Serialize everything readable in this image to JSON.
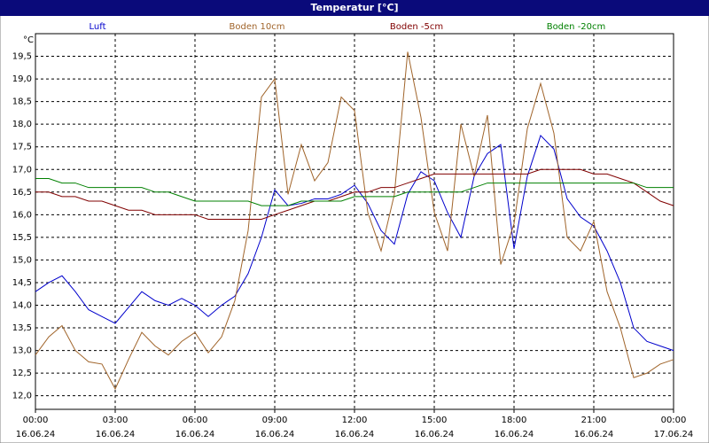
{
  "chart_data": {
    "type": "line",
    "title": "Temperatur [°C]",
    "y_unit": "°C",
    "x": [
      0,
      0.5,
      1,
      1.5,
      2,
      2.5,
      3,
      3.5,
      4,
      4.5,
      5,
      5.5,
      6,
      6.5,
      7,
      7.5,
      8,
      8.5,
      9,
      9.5,
      10,
      10.5,
      11,
      11.5,
      12,
      12.5,
      13,
      13.5,
      14,
      14.5,
      15,
      15.5,
      16,
      16.5,
      17,
      17.5,
      18,
      18.5,
      19,
      19.5,
      20,
      20.5,
      21,
      21.5,
      22,
      22.5,
      23,
      23.5,
      24
    ],
    "series": [
      {
        "name": "Luft",
        "color": "#0000cc",
        "values": [
          14.3,
          14.5,
          14.65,
          14.3,
          13.9,
          13.75,
          13.6,
          13.95,
          14.3,
          14.1,
          14.0,
          14.15,
          14.0,
          13.75,
          14.0,
          14.2,
          14.7,
          15.5,
          16.55,
          16.2,
          16.25,
          16.35,
          16.35,
          16.45,
          16.65,
          16.25,
          15.65,
          15.35,
          16.45,
          16.95,
          16.75,
          16.05,
          15.5,
          16.85,
          17.35,
          17.55,
          15.25,
          16.85,
          17.75,
          17.45,
          16.35,
          15.95,
          15.75,
          15.2,
          14.5,
          13.5,
          13.2,
          13.1,
          13.0
        ]
      },
      {
        "name": "Boden 10cm",
        "color": "#a0642a",
        "values": [
          12.9,
          13.3,
          13.55,
          13.0,
          12.75,
          12.7,
          12.15,
          12.8,
          13.4,
          13.1,
          12.9,
          13.2,
          13.4,
          12.95,
          13.3,
          14.1,
          15.65,
          18.6,
          19.0,
          16.45,
          17.55,
          16.75,
          17.15,
          18.6,
          18.3,
          16.05,
          15.2,
          16.45,
          19.6,
          18.15,
          16.05,
          15.2,
          18.0,
          16.85,
          18.2,
          14.9,
          15.8,
          17.9,
          18.9,
          17.8,
          15.5,
          15.2,
          15.85,
          14.3,
          13.5,
          12.4,
          12.5,
          12.7,
          12.8
        ]
      },
      {
        "name": "Boden -5cm",
        "color": "#800000",
        "values": [
          16.5,
          16.5,
          16.4,
          16.4,
          16.3,
          16.3,
          16.2,
          16.1,
          16.1,
          16.0,
          16.0,
          16.0,
          16.0,
          15.9,
          15.9,
          15.9,
          15.9,
          15.9,
          16.0,
          16.1,
          16.2,
          16.3,
          16.3,
          16.4,
          16.5,
          16.5,
          16.6,
          16.6,
          16.7,
          16.8,
          16.9,
          16.9,
          16.9,
          16.9,
          16.9,
          16.9,
          16.9,
          16.9,
          17.0,
          17.0,
          17.0,
          17.0,
          16.9,
          16.9,
          16.8,
          16.7,
          16.5,
          16.3,
          16.2
        ]
      },
      {
        "name": "Boden -20cm",
        "color": "#008000",
        "values": [
          16.8,
          16.8,
          16.7,
          16.7,
          16.6,
          16.6,
          16.6,
          16.6,
          16.6,
          16.5,
          16.5,
          16.4,
          16.3,
          16.3,
          16.3,
          16.3,
          16.3,
          16.2,
          16.2,
          16.2,
          16.3,
          16.3,
          16.3,
          16.3,
          16.4,
          16.4,
          16.4,
          16.4,
          16.5,
          16.5,
          16.5,
          16.5,
          16.5,
          16.6,
          16.7,
          16.7,
          16.7,
          16.7,
          16.7,
          16.7,
          16.7,
          16.7,
          16.7,
          16.7,
          16.7,
          16.7,
          16.6,
          16.6,
          16.6
        ]
      }
    ],
    "xlim": [
      0,
      24
    ],
    "xticks": [
      {
        "value": 0,
        "label": "00:00",
        "date": "16.06.24"
      },
      {
        "value": 3,
        "label": "03:00",
        "date": "16.06.24"
      },
      {
        "value": 6,
        "label": "06:00",
        "date": "16.06.24"
      },
      {
        "value": 9,
        "label": "09:00",
        "date": "16.06.24"
      },
      {
        "value": 12,
        "label": "12:00",
        "date": "16.06.24"
      },
      {
        "value": 15,
        "label": "15:00",
        "date": "16.06.24"
      },
      {
        "value": 18,
        "label": "18:00",
        "date": "16.06.24"
      },
      {
        "value": 21,
        "label": "21:00",
        "date": "16.06.24"
      },
      {
        "value": 24,
        "label": "00:00",
        "date": "17.06.24"
      }
    ],
    "ylim": [
      11.7,
      20.0
    ],
    "yticks": [
      {
        "value": 12.0,
        "label": "12,0"
      },
      {
        "value": 12.5,
        "label": "12,5"
      },
      {
        "value": 13.0,
        "label": "13,0"
      },
      {
        "value": 13.5,
        "label": "13,5"
      },
      {
        "value": 14.0,
        "label": "14,0"
      },
      {
        "value": 14.5,
        "label": "14,5"
      },
      {
        "value": 15.0,
        "label": "15,0"
      },
      {
        "value": 15.5,
        "label": "15,5"
      },
      {
        "value": 16.0,
        "label": "16,0"
      },
      {
        "value": 16.5,
        "label": "16,5"
      },
      {
        "value": 17.0,
        "label": "17,0"
      },
      {
        "value": 17.5,
        "label": "17,5"
      },
      {
        "value": 18.0,
        "label": "18,0"
      },
      {
        "value": 18.5,
        "label": "18,5"
      },
      {
        "value": 19.0,
        "label": "19,0"
      },
      {
        "value": 19.5,
        "label": "19,5"
      }
    ],
    "grid": true
  }
}
